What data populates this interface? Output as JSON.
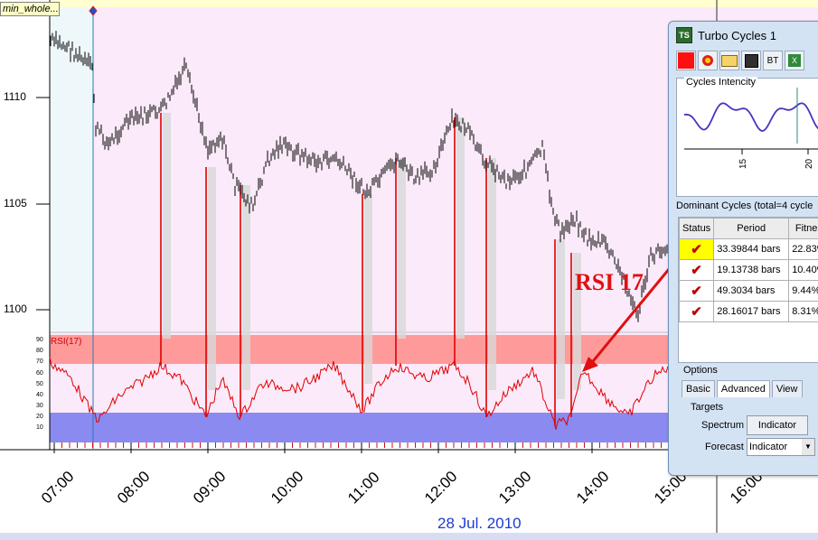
{
  "symbol_label": "min_whole...",
  "y_axis": {
    "labels": [
      "1110",
      "1105",
      "1100"
    ],
    "values": [
      1110,
      1105,
      1100
    ]
  },
  "rsi": {
    "title": "RSI(17)",
    "tick_labels": [
      "90",
      "80",
      "70",
      "60",
      "50",
      "40",
      "30",
      "20",
      "10"
    ],
    "upper_band": [
      70,
      93
    ],
    "lower_band": [
      7,
      30
    ],
    "colors": {
      "upper_band": "#ff9a9a",
      "lower_band": "#8a8af0",
      "line": "#e00000"
    }
  },
  "x_axis": {
    "labels": [
      "07:00",
      "08:00",
      "09:00",
      "10:00",
      "11:00",
      "12:00",
      "13:00",
      "14:00",
      "15:00",
      "16:00"
    ]
  },
  "date_label": "28 Jul. 2010",
  "callout": "RSI 17",
  "window": {
    "title": "Turbo Cycles 1",
    "toolbar": {
      "stop_icon": "red-square-icon",
      "settings_icon": "gear-icon",
      "open_icon": "folder-icon",
      "save_icon": "floppy-icon",
      "bt_label": "BT",
      "excel_icon": "excel-icon"
    },
    "cycles_intensity": {
      "title": "Cycles Intencity",
      "tick_labels": [
        "15",
        "20"
      ]
    },
    "dominant_cycles": {
      "title": "Dominant Cycles (total=4 cycle",
      "columns": [
        "Status",
        "Period",
        "Fitnes"
      ],
      "rows": [
        {
          "period": "33.39844 bars",
          "fitness": "22.83%"
        },
        {
          "period": "19.13738 bars",
          "fitness": "10.40%"
        },
        {
          "period": "49.3034 bars",
          "fitness": "9.44%"
        },
        {
          "period": "28.16017 bars",
          "fitness": "8.31%"
        }
      ]
    },
    "options": {
      "title": "Options",
      "tabs": [
        "Basic",
        "Advanced",
        "View"
      ],
      "targets_title": "Targets",
      "spectrum_label": "Spectrum",
      "spectrum_button": "Indicator",
      "forecast_label": "Forecast",
      "forecast_value": "Indicator"
    }
  }
}
